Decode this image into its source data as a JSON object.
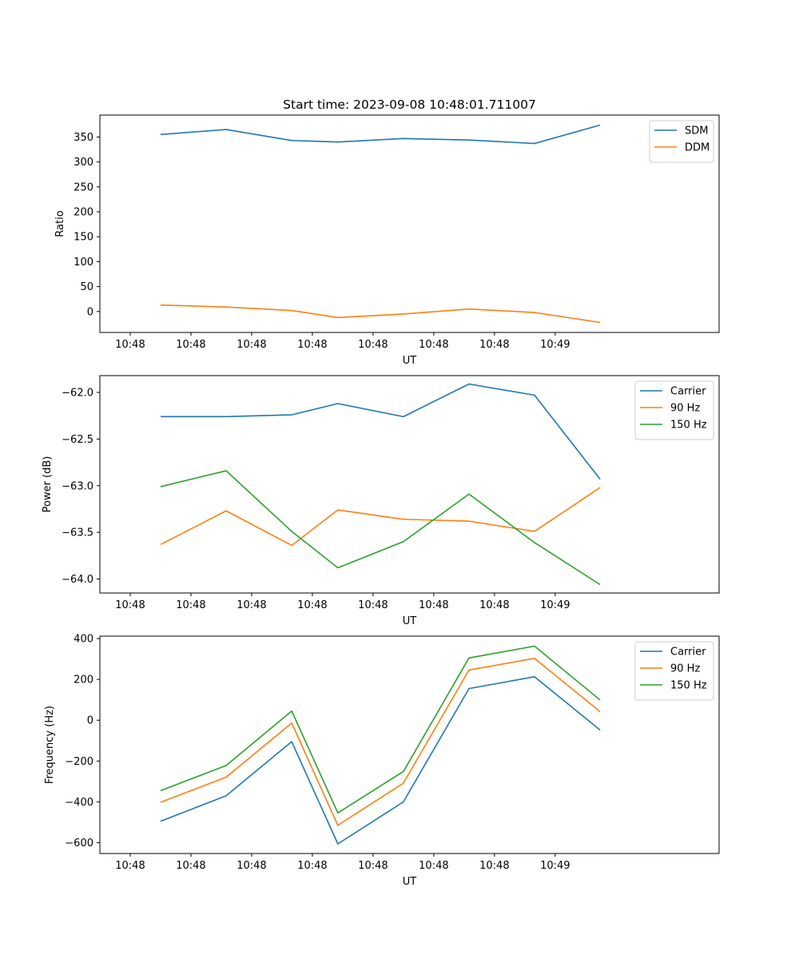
{
  "chart_data": [
    {
      "type": "line",
      "title": "Start time: 2023-09-08 10:48:01.711007",
      "xlabel": "UT",
      "ylabel": "Ratio",
      "x_tick_labels": [
        "10:48",
        "10:48",
        "10:48",
        "10:48",
        "10:48",
        "10:48",
        "10:48",
        "10:49"
      ],
      "xlim": [
        -0.5,
        9.7
      ],
      "y_ticks": [
        0,
        50,
        100,
        150,
        200,
        250,
        300,
        350
      ],
      "ylim": [
        -42,
        394
      ],
      "legend": "top-right",
      "x": [
        0.5,
        1.58,
        2.66,
        3.42,
        4.5,
        5.58,
        6.66,
        7.74
      ],
      "series": [
        {
          "name": "SDM",
          "color": "#1f77b4",
          "values": [
            355,
            365,
            343,
            340,
            347,
            344,
            337,
            374
          ]
        },
        {
          "name": "DDM",
          "color": "#ff7f0e",
          "values": [
            13,
            9,
            2,
            -12,
            -5,
            5,
            -2,
            -22
          ]
        }
      ]
    },
    {
      "type": "line",
      "title": "",
      "xlabel": "UT",
      "ylabel": "Power (dB)",
      "x_tick_labels": [
        "10:48",
        "10:48",
        "10:48",
        "10:48",
        "10:48",
        "10:48",
        "10:48",
        "10:49"
      ],
      "xlim": [
        -0.5,
        9.7
      ],
      "y_ticks": [
        -62.0,
        -62.5,
        -63.0,
        -63.5,
        -64.0
      ],
      "y_tick_labels": [
        "−62.0",
        "−62.5",
        "−63.0",
        "−63.5",
        "−64.0"
      ],
      "ylim": [
        -64.15,
        -61.82
      ],
      "legend": "top-right",
      "x": [
        0.5,
        1.58,
        2.66,
        3.42,
        4.5,
        5.58,
        6.66,
        7.74
      ],
      "series": [
        {
          "name": "Carrier",
          "color": "#1f77b4",
          "values": [
            -62.26,
            -62.26,
            -62.24,
            -62.12,
            -62.26,
            -61.91,
            -62.03,
            -62.93
          ]
        },
        {
          "name": "90 Hz",
          "color": "#ff7f0e",
          "values": [
            -63.63,
            -63.27,
            -63.64,
            -63.26,
            -63.36,
            -63.38,
            -63.49,
            -63.02
          ]
        },
        {
          "name": "150 Hz",
          "color": "#2ca02c",
          "values": [
            -63.01,
            -62.84,
            -63.49,
            -63.88,
            -63.6,
            -63.09,
            -63.61,
            -64.06
          ]
        }
      ]
    },
    {
      "type": "line",
      "title": "",
      "xlabel": "UT",
      "ylabel": "Frequency (Hz)",
      "x_tick_labels": [
        "10:48",
        "10:48",
        "10:48",
        "10:48",
        "10:48",
        "10:48",
        "10:48",
        "10:49"
      ],
      "xlim": [
        -0.5,
        9.7
      ],
      "y_ticks": [
        -600,
        -400,
        -200,
        0,
        200,
        400
      ],
      "y_tick_labels": [
        "−600",
        "−400",
        "−200",
        "0",
        "200",
        "400"
      ],
      "ylim": [
        -653,
        412
      ],
      "legend": "top-right",
      "x": [
        0.5,
        1.58,
        2.66,
        3.42,
        4.5,
        5.58,
        6.66,
        7.74
      ],
      "series": [
        {
          "name": "Carrier",
          "color": "#1f77b4",
          "values": [
            -495,
            -370,
            -105,
            -606,
            -400,
            155,
            213,
            -48
          ]
        },
        {
          "name": "90 Hz",
          "color": "#ff7f0e",
          "values": [
            -402,
            -279,
            -14,
            -515,
            -308,
            246,
            303,
            42
          ]
        },
        {
          "name": "150 Hz",
          "color": "#2ca02c",
          "values": [
            -345,
            -222,
            45,
            -454,
            -251,
            305,
            363,
            99
          ]
        }
      ]
    }
  ]
}
